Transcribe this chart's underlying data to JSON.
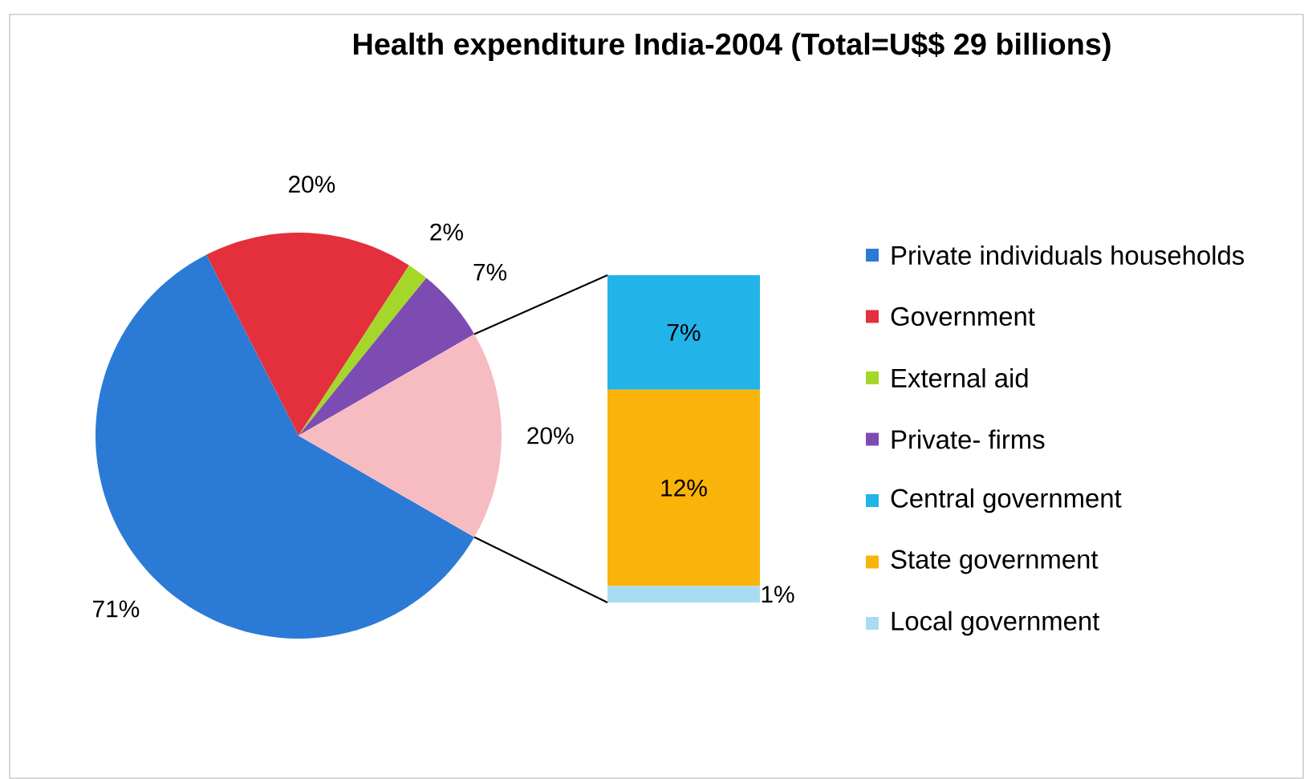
{
  "chart_data": [
    {
      "type": "pie",
      "title": "Health expenditure India-2004 (Total=U$$ 29 billions)",
      "categories": [
        "Private individuals households",
        "Government",
        "External aid",
        "Private- firms",
        null
      ],
      "values": [
        71,
        20,
        2,
        7,
        20
      ],
      "value_labels": [
        "71%",
        "20%",
        "2%",
        "7%",
        "20%"
      ],
      "colors": [
        "#2b7bd6",
        "#e3303c",
        "#a5d62a",
        "#7d4cb3",
        "#f6bcc2"
      ],
      "legend": "right"
    },
    {
      "type": "bar",
      "stacked": true,
      "legend": "right",
      "categories": [
        null
      ],
      "series": [
        {
          "name": "Local government",
          "color": "#a8dcf2",
          "values": [
            1
          ],
          "value_labels": [
            "1%"
          ]
        },
        {
          "name": "State government",
          "color": "#f9b30a",
          "values": [
            12
          ],
          "value_labels": [
            "12%"
          ]
        },
        {
          "name": "Central government",
          "color": "#22b4e8",
          "values": [
            7
          ],
          "value_labels": [
            "7%"
          ]
        }
      ]
    }
  ]
}
